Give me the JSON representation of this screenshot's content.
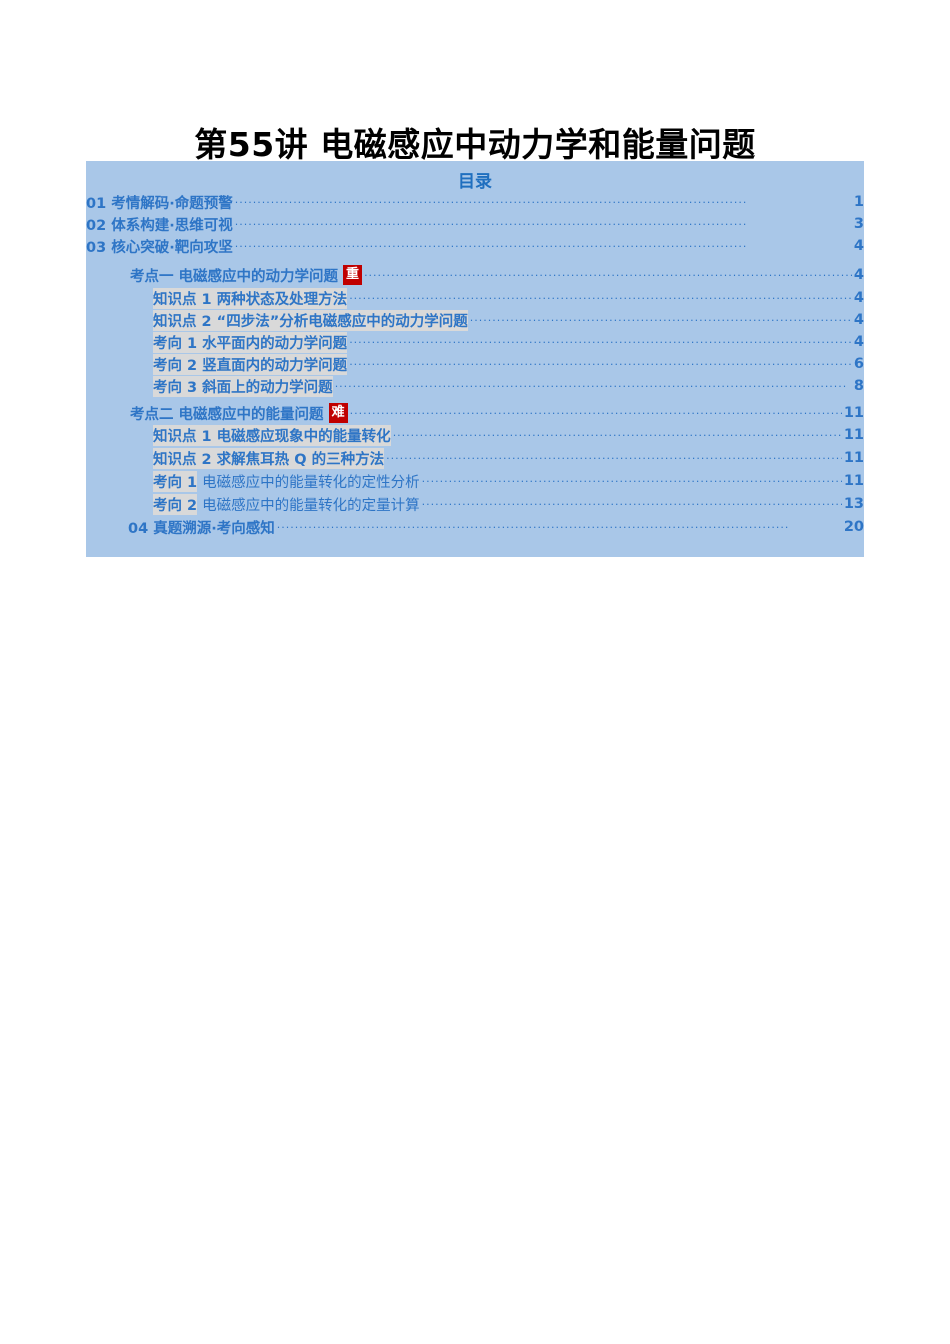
{
  "doc_title": "第55讲 电磁感应中动力学和能量问题",
  "toc_heading": "目录",
  "leader": "··················································································································",
  "entries": [
    {
      "label": "01 考情解码·命题预警",
      "page": "1"
    },
    {
      "label": "02 体系构建·思维可视",
      "page": "3"
    },
    {
      "label": "03 核心突破·靶向攻坚",
      "page": "4"
    },
    {
      "label": "考点一  电磁感应中的动力学问题",
      "badge": "重",
      "page": "4"
    },
    {
      "label": "知识点 1  两种状态及处理方法",
      "page": "4"
    },
    {
      "label": "知识点 2  “四步法”分析电磁感应中的动力学问题",
      "page": "4"
    },
    {
      "label": "考向 1 水平面内的动力学问题",
      "page": "4"
    },
    {
      "label": "考向 2 竖直面内的动力学问题",
      "page": "6"
    },
    {
      "label": "考向 3 斜面上的动力学问题",
      "page": "8"
    },
    {
      "label": "考点二  电磁感应中的能量问题",
      "badge": "难",
      "page": "11"
    },
    {
      "label": "知识点 1 电磁感应现象中的能量转化",
      "page": "11"
    },
    {
      "label": "知识点 2 求解焦耳热 Q 的三种方法",
      "page": "11"
    },
    {
      "label": "考向 1",
      "sub": "电磁感应中的能量转化的定性分析",
      "page": "11"
    },
    {
      "label": "考向 2",
      "sub": "电磁感应中的能量转化的定量计算",
      "page": "13"
    },
    {
      "label": "04 真题溯源·考向感知",
      "page": "20"
    }
  ]
}
